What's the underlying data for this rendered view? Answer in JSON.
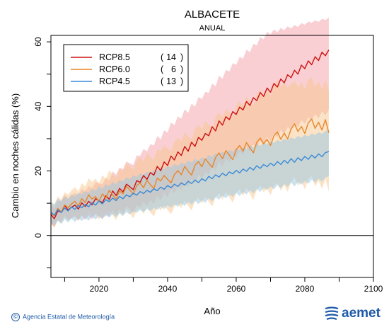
{
  "header": {
    "title": "ALBACETE",
    "subtitle": "ANUAL"
  },
  "footer": {
    "credit": "Agencia Estatal de Meteorología",
    "logo_text": "aemet",
    "credit_symbol": "©"
  },
  "colors": {
    "rcp85": "#cc1111",
    "rcp85_band": "#f4a0a8",
    "rcp60": "#e8862a",
    "rcp60_band": "#f7c890",
    "rcp45": "#3a8ad6",
    "rcp45_band": "#98c8e4",
    "brand": "#1e5aa8"
  },
  "chart_data": {
    "type": "line",
    "title": "ALBACETE",
    "subtitle": "ANUAL",
    "xlabel": "Año",
    "ylabel": "Cambio en noches cálidas (%)",
    "xlim": [
      2006,
      2100
    ],
    "ylim": [
      -13,
      62
    ],
    "xticks": [
      2020,
      2040,
      2060,
      2080,
      2100
    ],
    "yticks": [
      0,
      20,
      40,
      60
    ],
    "x_start": 2006,
    "legend_position": "top-left",
    "series": [
      {
        "name": "RCP8.5",
        "models": 14,
        "values": [
          6.5,
          5.2,
          7.6,
          7.2,
          9.3,
          7.9,
          8.8,
          9.4,
          8.2,
          10.1,
          9.0,
          10.6,
          9.5,
          11.4,
          10.8,
          10.2,
          12.3,
          11.2,
          13.8,
          12.4,
          14.6,
          13.5,
          15.9,
          15.1,
          14.2,
          17.0,
          16.5,
          18.6,
          17.4,
          19.5,
          18.7,
          21.4,
          20.1,
          22.8,
          21.7,
          24.6,
          23.4,
          25.9,
          24.8,
          27.6,
          26.1,
          28.9,
          27.6,
          30.4,
          29.5,
          31.6,
          30.9,
          33.7,
          32.4,
          35.5,
          34.2,
          36.8,
          35.9,
          38.4,
          37.5,
          39.8,
          38.9,
          41.5,
          40.3,
          42.7,
          41.8,
          44.3,
          43.1,
          45.7,
          44.4,
          47.1,
          46.0,
          48.5,
          47.3,
          49.8,
          48.9,
          51.2,
          50.0,
          52.8,
          51.7,
          54.1,
          52.9,
          55.4,
          54.2,
          56.8,
          55.7,
          57.5
        ],
        "upper": [
          9.5,
          8.3,
          10.8,
          10.6,
          12.7,
          11.5,
          12.6,
          13.2,
          12.4,
          14.5,
          13.7,
          15.4,
          14.6,
          16.6,
          16.2,
          15.8,
          17.9,
          17.1,
          19.9,
          18.8,
          21.1,
          20.5,
          22.9,
          22.4,
          21.8,
          24.8,
          24.7,
          26.8,
          26.1,
          28.3,
          27.9,
          30.8,
          29.8,
          32.6,
          31.9,
          35.0,
          34.2,
          36.9,
          36.2,
          39.1,
          38.0,
          40.9,
          39.9,
          42.9,
          42.3,
          44.5,
          44.2,
          47.1,
          46.2,
          49.5,
          48.6,
          51.3,
          50.8,
          53.4,
          52.9,
          55.3,
          54.8,
          57.6,
          56.8,
          59.4,
          58.9,
          61.5,
          60.8,
          63.1,
          62.3,
          63.8,
          63.0,
          64.3,
          63.6,
          64.8,
          64.1,
          65.2,
          64.6,
          65.8,
          65.3,
          66.3,
          65.9,
          66.7,
          66.2,
          67.1,
          66.8,
          67.5
        ],
        "lower": [
          3.8,
          2.5,
          4.8,
          4.3,
          6.2,
          4.7,
          5.4,
          5.9,
          4.5,
          6.2,
          4.8,
          6.3,
          5.0,
          6.8,
          5.9,
          5.1,
          6.9,
          5.6,
          7.9,
          6.3,
          8.3,
          6.9,
          9.1,
          8.1,
          6.9,
          9.4,
          8.6,
          10.5,
          9.1,
          10.9,
          9.8,
          12.2,
          10.7,
          13.2,
          11.9,
          14.4,
          13.0,
          15.2,
          14.0,
          16.5,
          14.9,
          17.5,
          16.2,
          18.8,
          17.7,
          19.6,
          18.9,
          21.4,
          20.0,
          22.8,
          21.4,
          23.8,
          22.7,
          25.0,
          23.9,
          26.1,
          25.0,
          27.4,
          26.0,
          28.2,
          27.1,
          29.4,
          28.1,
          30.5,
          29.1,
          31.6,
          30.4,
          32.7,
          31.4,
          33.6,
          32.6,
          34.7,
          33.4,
          35.8,
          34.6,
          36.7,
          35.4,
          37.6,
          36.3,
          38.5,
          37.2,
          39.0
        ]
      },
      {
        "name": "RCP6.0",
        "models": 6,
        "values": [
          7.0,
          6.1,
          8.4,
          7.3,
          9.5,
          8.6,
          9.8,
          10.6,
          9.1,
          11.4,
          10.2,
          12.6,
          11.3,
          12.1,
          10.5,
          12.9,
          11.6,
          14.0,
          12.6,
          11.3,
          13.8,
          12.9,
          15.2,
          14.1,
          12.8,
          15.5,
          16.3,
          14.8,
          17.1,
          15.7,
          14.6,
          17.8,
          16.9,
          18.6,
          17.4,
          16.3,
          18.9,
          20.1,
          18.8,
          21.4,
          19.9,
          18.7,
          21.8,
          22.9,
          21.3,
          23.7,
          22.4,
          21.1,
          24.2,
          25.6,
          23.8,
          26.3,
          24.9,
          23.5,
          26.6,
          27.9,
          26.1,
          28.8,
          27.2,
          25.6,
          28.9,
          30.2,
          28.4,
          29.8,
          27.9,
          30.9,
          32.1,
          29.8,
          31.7,
          29.9,
          33.0,
          34.6,
          32.2,
          33.8,
          31.6,
          34.9,
          36.1,
          33.2,
          35.1,
          32.7,
          35.9,
          31.8
        ],
        "upper": [
          10.5,
          9.6,
          12.1,
          11.1,
          13.4,
          12.7,
          14.0,
          15.0,
          13.7,
          16.2,
          15.2,
          17.7,
          16.6,
          17.6,
          16.1,
          18.7,
          17.6,
          20.2,
          19.0,
          17.9,
          20.6,
          19.9,
          22.4,
          21.5,
          20.4,
          23.3,
          24.3,
          23.0,
          25.5,
          24.3,
          23.4,
          26.8,
          26.1,
          28.0,
          27.0,
          26.1,
          28.9,
          30.3,
          29.2,
          32.0,
          30.7,
          29.7,
          33.0,
          34.3,
          32.9,
          35.5,
          34.4,
          33.3,
          36.6,
          38.2,
          36.6,
          39.3,
          38.1,
          36.9,
          40.2,
          41.7,
          40.1,
          43.0,
          41.6,
          40.2,
          43.7,
          45.2,
          43.6,
          45.2,
          43.5,
          46.7,
          48.1,
          46.0,
          47.5,
          45.9,
          46.9,
          48.0,
          45.9,
          47.5,
          45.2,
          48.3,
          49.0,
          46.1,
          47.9,
          45.2,
          48.3,
          44.8
        ],
        "lower": [
          3.4,
          2.5,
          4.7,
          3.6,
          5.6,
          4.6,
          5.5,
          6.2,
          4.6,
          6.7,
          5.3,
          7.5,
          6.1,
          6.6,
          4.9,
          7.1,
          5.7,
          7.9,
          6.3,
          4.8,
          7.1,
          6.0,
          8.1,
          6.8,
          5.3,
          7.8,
          8.4,
          6.7,
          8.8,
          7.2,
          5.9,
          8.9,
          7.8,
          9.3,
          7.9,
          6.6,
          8.9,
          9.9,
          8.5,
          10.9,
          9.2,
          7.8,
          10.7,
          11.6,
          9.8,
          12.0,
          10.5,
          9.0,
          11.9,
          13.1,
          11.1,
          13.4,
          11.8,
          10.2,
          13.1,
          14.3,
          12.2,
          14.7,
          12.9,
          11.1,
          14.2,
          15.4,
          13.4,
          14.6,
          12.5,
          15.3,
          16.3,
          13.9,
          15.6,
          13.6,
          16.6,
          18.0,
          15.4,
          16.8,
          14.3,
          17.4,
          18.4,
          15.2,
          17.0,
          14.4,
          17.5,
          13.6
        ]
      },
      {
        "name": "RCP4.5",
        "models": 13,
        "values": [
          7.2,
          6.3,
          8.0,
          7.1,
          8.5,
          7.6,
          8.9,
          8.1,
          9.3,
          8.6,
          9.6,
          8.9,
          10.2,
          9.4,
          10.7,
          9.8,
          11.1,
          10.5,
          11.6,
          10.8,
          12.1,
          11.4,
          12.6,
          12.0,
          13.1,
          12.5,
          13.6,
          13.0,
          14.0,
          13.4,
          14.5,
          13.9,
          15.0,
          14.3,
          15.5,
          14.8,
          15.9,
          15.2,
          16.3,
          15.6,
          16.8,
          16.1,
          17.2,
          16.4,
          17.6,
          16.9,
          18.3,
          17.6,
          18.8,
          18.1,
          19.3,
          18.5,
          19.7,
          19.1,
          20.2,
          19.4,
          20.6,
          19.9,
          21.1,
          20.3,
          21.6,
          20.8,
          22.0,
          21.3,
          22.4,
          21.6,
          22.9,
          22.0,
          23.3,
          22.4,
          23.8,
          22.7,
          24.1,
          23.2,
          24.5,
          23.6,
          24.9,
          24.0,
          25.3,
          24.4,
          25.7,
          26.0
        ],
        "upper": [
          10.4,
          9.6,
          11.4,
          10.6,
          12.1,
          11.3,
          12.7,
          12.0,
          13.3,
          12.7,
          13.8,
          13.2,
          14.5,
          13.9,
          15.3,
          14.5,
          15.9,
          15.3,
          16.6,
          15.9,
          17.3,
          16.7,
          18.0,
          17.5,
          18.6,
          18.1,
          19.3,
          18.8,
          19.8,
          19.3,
          20.4,
          20.0,
          21.0,
          20.5,
          21.6,
          21.1,
          22.2,
          21.6,
          22.6,
          22.2,
          23.2,
          22.7,
          23.7,
          23.2,
          24.2,
          23.7,
          24.9,
          24.4,
          25.5,
          25.0,
          26.0,
          25.5,
          26.5,
          26.0,
          27.0,
          26.4,
          27.4,
          26.9,
          27.9,
          27.3,
          28.4,
          27.8,
          28.8,
          28.3,
          29.2,
          28.7,
          29.6,
          29.1,
          30.0,
          29.5,
          30.4,
          29.9,
          30.8,
          30.3,
          31.2,
          30.7,
          31.6,
          31.1,
          32.0,
          31.5,
          32.4,
          32.7
        ],
        "lower": [
          4.0,
          3.0,
          4.6,
          3.6,
          5.0,
          4.0,
          5.2,
          4.2,
          5.4,
          4.5,
          5.5,
          4.6,
          5.9,
          4.9,
          6.1,
          5.1,
          6.3,
          5.6,
          6.6,
          5.7,
          6.9,
          6.1,
          7.2,
          6.5,
          7.6,
          7.0,
          7.9,
          7.3,
          8.2,
          7.6,
          8.6,
          7.9,
          9.0,
          8.2,
          9.4,
          8.6,
          9.7,
          8.9,
          10.0,
          9.1,
          10.4,
          9.6,
          10.7,
          9.7,
          11.0,
          10.1,
          11.5,
          10.6,
          11.9,
          11.1,
          12.4,
          11.5,
          12.7,
          12.0,
          13.2,
          12.2,
          13.5,
          12.7,
          14.0,
          13.1,
          14.4,
          13.5,
          14.8,
          14.1,
          15.2,
          14.3,
          15.6,
          14.7,
          16.0,
          15.1,
          16.4,
          15.2,
          16.6,
          15.7,
          16.9,
          16.0,
          17.3,
          16.4,
          17.6,
          16.7,
          18.0,
          18.3
        ]
      }
    ]
  }
}
